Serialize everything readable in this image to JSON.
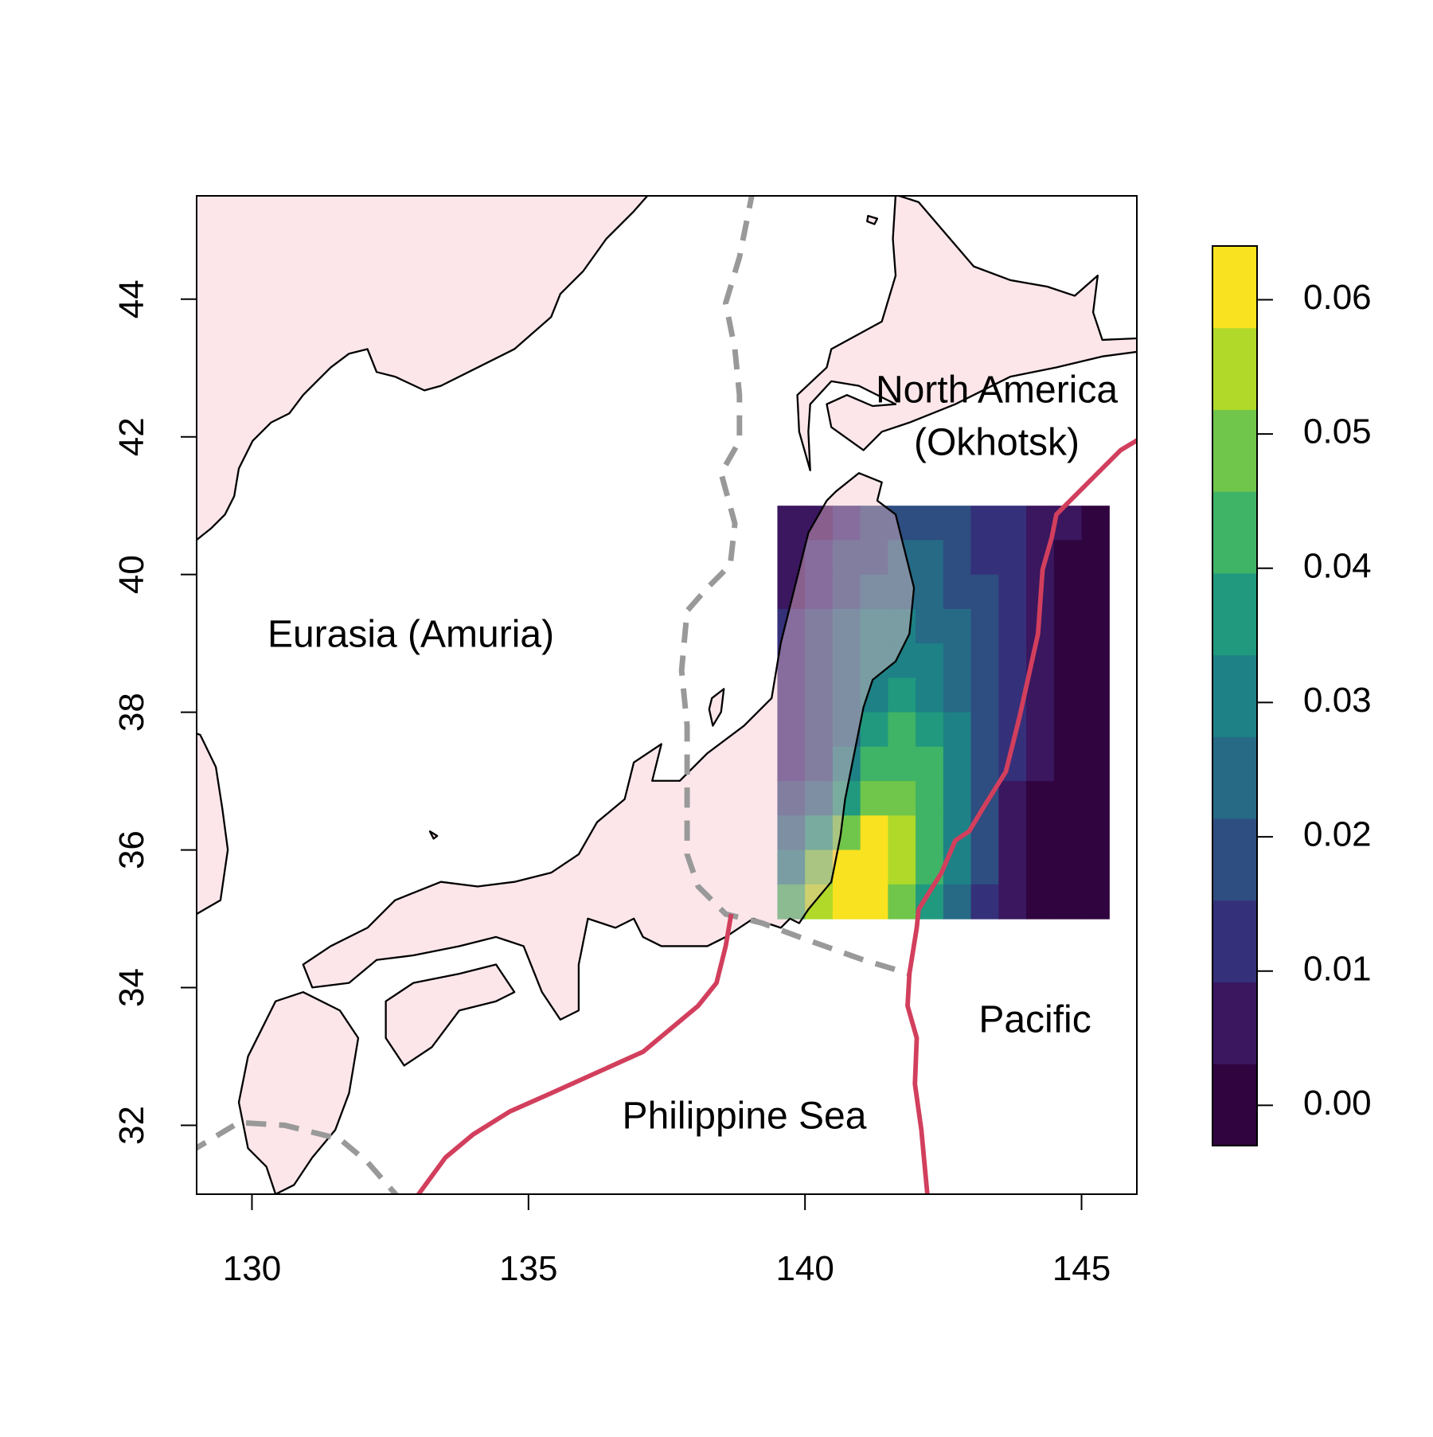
{
  "chart_data": {
    "type": "heatmap",
    "plate_labels": [
      "North America",
      "(Okhotsk)",
      "Eurasia (Amuria)",
      "Pacific",
      "Philippine Sea"
    ],
    "xlim": [
      129,
      146
    ],
    "ylim": [
      31,
      45.5
    ],
    "xticks": [
      130,
      135,
      140,
      145
    ],
    "yticks": [
      32,
      34,
      36,
      38,
      40,
      42,
      44
    ],
    "x": [
      139.75,
      140.25,
      140.75,
      141.25,
      141.75,
      142.25,
      142.75,
      143.25,
      143.75,
      144.25,
      144.75,
      145.25
    ],
    "y": [
      40.75,
      40.25,
      39.75,
      39.25,
      38.75,
      38.25,
      37.75,
      37.25,
      36.75,
      36.25,
      35.75,
      35.25
    ],
    "values": [
      [
        0.004,
        0.008,
        0.012,
        0.016,
        0.018,
        0.019,
        0.018,
        0.014,
        0.011,
        0.008,
        0.004,
        0.002
      ],
      [
        0.006,
        0.011,
        0.016,
        0.02,
        0.022,
        0.022,
        0.02,
        0.015,
        0.011,
        0.007,
        0.003,
        0.001
      ],
      [
        0.008,
        0.014,
        0.02,
        0.024,
        0.025,
        0.024,
        0.021,
        0.016,
        0.011,
        0.006,
        0.002,
        0.001
      ],
      [
        0.01,
        0.016,
        0.023,
        0.028,
        0.029,
        0.027,
        0.022,
        0.016,
        0.01,
        0.005,
        0.002,
        0.001
      ],
      [
        0.011,
        0.016,
        0.024,
        0.031,
        0.032,
        0.03,
        0.024,
        0.017,
        0.01,
        0.005,
        0.002,
        0.001
      ],
      [
        0.012,
        0.016,
        0.024,
        0.033,
        0.036,
        0.033,
        0.026,
        0.018,
        0.01,
        0.004,
        0.002,
        0.001
      ],
      [
        0.013,
        0.017,
        0.026,
        0.036,
        0.04,
        0.037,
        0.028,
        0.019,
        0.01,
        0.004,
        0.002,
        0.002
      ],
      [
        0.015,
        0.02,
        0.03,
        0.042,
        0.045,
        0.041,
        0.03,
        0.019,
        0.01,
        0.004,
        0.001,
        0.001
      ],
      [
        0.018,
        0.026,
        0.038,
        0.05,
        0.051,
        0.044,
        0.031,
        0.019,
        0.009,
        0.003,
        0.0,
        0.0
      ],
      [
        0.024,
        0.035,
        0.05,
        0.058,
        0.054,
        0.044,
        0.03,
        0.018,
        0.008,
        0.002,
        0.0,
        0.0
      ],
      [
        0.032,
        0.046,
        0.06,
        0.062,
        0.053,
        0.041,
        0.028,
        0.016,
        0.007,
        0.001,
        0.0,
        0.0
      ],
      [
        0.04,
        0.054,
        0.064,
        0.06,
        0.048,
        0.037,
        0.025,
        0.014,
        0.006,
        0.001,
        0.0,
        0.0
      ]
    ],
    "colorbar": {
      "lim": [
        -0.003,
        0.064
      ],
      "colors": [
        "#30053f",
        "#3a175f",
        "#35307a",
        "#2e4d80",
        "#266a86",
        "#1e8186",
        "#20997e",
        "#3fb366",
        "#70c64a",
        "#b0d92a",
        "#f9e21f"
      ],
      "ticks": [
        {
          "value": 0,
          "label": "0.00"
        },
        0.01,
        0.02,
        0.03,
        0.04,
        0.05,
        0.06
      ]
    }
  }
}
